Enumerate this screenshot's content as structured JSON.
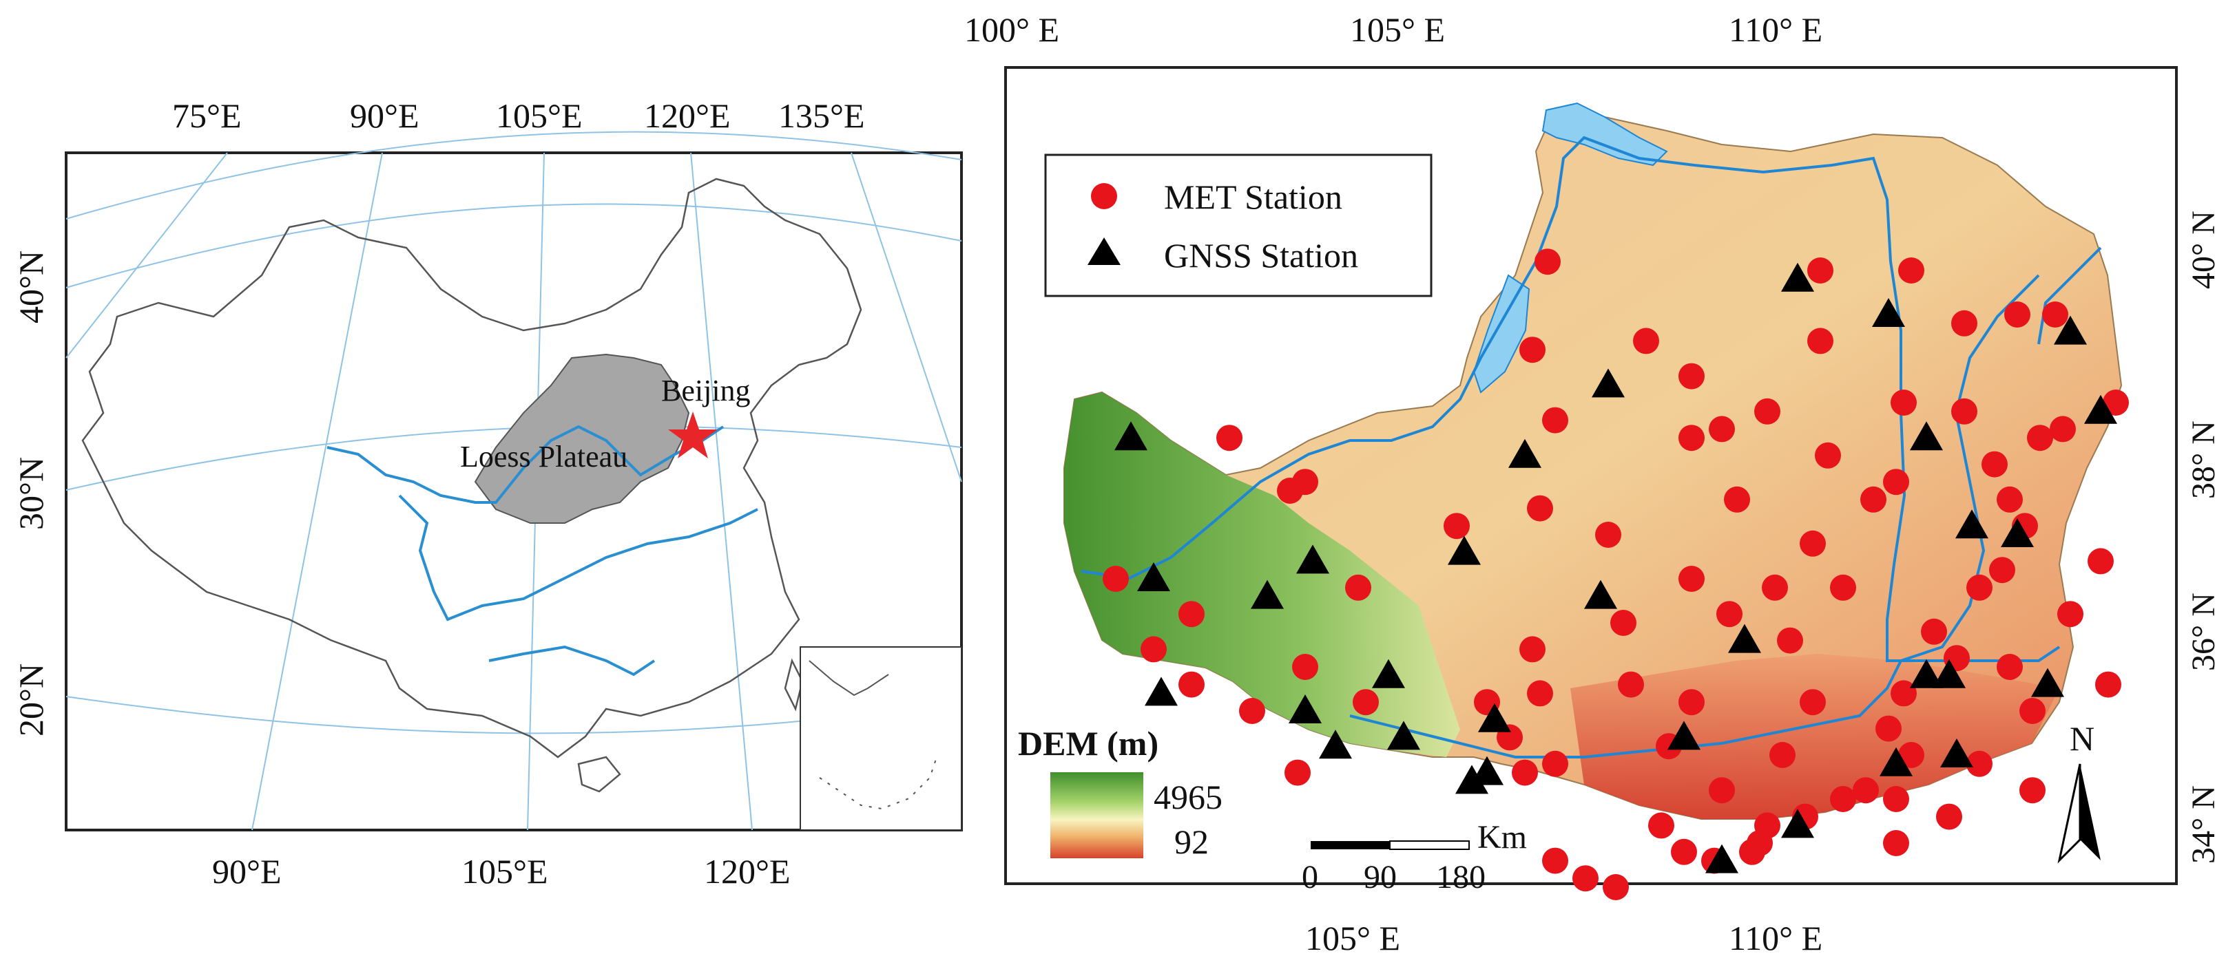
{
  "left_map": {
    "top_ticks": [
      "75°E",
      "90°E",
      "105°E",
      "120°E",
      "135°E"
    ],
    "bottom_ticks": [
      "90°E",
      "105°E",
      "120°E"
    ],
    "left_ticks": [
      "40°N",
      "30°N",
      "20°N"
    ],
    "labels": {
      "beijing": "Beijing",
      "loess_plateau": "Loess Plateau"
    },
    "colors": {
      "plateau": "#a6a6a6",
      "star": "#e8262a",
      "river": "#2a8fd0",
      "graticule": "#8fc3e6"
    }
  },
  "right_map": {
    "top_ticks": [
      "100° E",
      "105° E",
      "110° E"
    ],
    "bottom_ticks": [
      "105° E",
      "110° E"
    ],
    "right_ticks": [
      "40° N",
      "38° N",
      "36° N",
      "34° N"
    ],
    "legend": {
      "met_label": "MET Station",
      "gnss_label": "GNSS Station"
    },
    "dem": {
      "title": "DEM (m)",
      "max": "4965",
      "min": "92"
    },
    "scale": {
      "unit": "Km",
      "ticks": [
        "0",
        "90",
        "180"
      ]
    },
    "north_label": "N",
    "colors": {
      "met": "#e8141c",
      "gnss": "#000000",
      "water": "#8fd0f2",
      "river": "#1f86d4"
    }
  },
  "stations": {
    "met": [
      [
        103.3,
        38.0
      ],
      [
        103.5,
        38.1
      ],
      [
        102.5,
        38.6
      ],
      [
        101.0,
        37.0
      ],
      [
        101.5,
        36.2
      ],
      [
        102.0,
        36.6
      ],
      [
        102.0,
        35.8
      ],
      [
        102.8,
        35.5
      ],
      [
        103.4,
        34.8
      ],
      [
        103.5,
        36.0
      ],
      [
        104.2,
        36.9
      ],
      [
        104.3,
        35.6
      ],
      [
        105.5,
        37.6
      ],
      [
        106.6,
        37.8
      ],
      [
        106.5,
        36.2
      ],
      [
        106.6,
        35.7
      ],
      [
        106.4,
        34.8
      ],
      [
        106.8,
        34.9
      ],
      [
        105.9,
        35.6
      ],
      [
        106.2,
        35.2
      ],
      [
        106.8,
        33.8
      ],
      [
        107.2,
        33.6
      ],
      [
        107.6,
        33.5
      ],
      [
        107.7,
        36.5
      ],
      [
        107.8,
        35.8
      ],
      [
        107.5,
        37.5
      ],
      [
        106.7,
        40.6
      ],
      [
        106.5,
        39.6
      ],
      [
        106.8,
        38.8
      ],
      [
        108.0,
        39.7
      ],
      [
        108.6,
        39.3
      ],
      [
        108.6,
        38.6
      ],
      [
        109.0,
        38.7
      ],
      [
        109.6,
        38.9
      ],
      [
        109.2,
        37.9
      ],
      [
        109.7,
        36.9
      ],
      [
        109.1,
        36.6
      ],
      [
        108.6,
        37.0
      ],
      [
        110.3,
        40.5
      ],
      [
        111.5,
        40.5
      ],
      [
        110.3,
        39.7
      ],
      [
        110.4,
        38.4
      ],
      [
        110.2,
        37.4
      ],
      [
        111.0,
        37.9
      ],
      [
        111.3,
        38.1
      ],
      [
        110.6,
        36.9
      ],
      [
        109.9,
        36.3
      ],
      [
        110.2,
        35.6
      ],
      [
        109.8,
        35.0
      ],
      [
        110.1,
        34.3
      ],
      [
        109.5,
        34.0
      ],
      [
        109.4,
        33.9
      ],
      [
        108.2,
        34.2
      ],
      [
        108.5,
        33.9
      ],
      [
        108.9,
        33.8
      ],
      [
        109.0,
        34.6
      ],
      [
        108.3,
        35.1
      ],
      [
        108.6,
        35.6
      ],
      [
        109.6,
        34.2
      ],
      [
        110.6,
        34.5
      ],
      [
        110.9,
        34.6
      ],
      [
        111.2,
        35.3
      ],
      [
        111.8,
        36.4
      ],
      [
        111.4,
        35.7
      ],
      [
        111.5,
        35.0
      ],
      [
        112.1,
        36.1
      ],
      [
        112.4,
        36.9
      ],
      [
        112.7,
        37.1
      ],
      [
        112.8,
        36.0
      ],
      [
        113.1,
        35.5
      ],
      [
        112.4,
        34.9
      ],
      [
        111.3,
        34.5
      ],
      [
        112.0,
        34.3
      ],
      [
        111.3,
        34.0
      ],
      [
        112.2,
        39.9
      ],
      [
        112.2,
        38.9
      ],
      [
        112.6,
        38.3
      ],
      [
        112.8,
        37.9
      ],
      [
        113.0,
        37.6
      ],
      [
        113.2,
        38.6
      ],
      [
        113.5,
        38.7
      ],
      [
        112.9,
        40.0
      ],
      [
        113.4,
        40.0
      ],
      [
        114.2,
        39.0
      ],
      [
        114.0,
        37.2
      ],
      [
        113.6,
        36.6
      ],
      [
        113.1,
        34.6
      ],
      [
        114.1,
        35.8
      ],
      [
        111.4,
        39.0
      ]
    ],
    "gnss": [
      [
        101.2,
        38.6
      ],
      [
        101.5,
        37.0
      ],
      [
        101.6,
        35.7
      ],
      [
        103.0,
        36.8
      ],
      [
        103.5,
        35.5
      ],
      [
        104.6,
        35.9
      ],
      [
        103.9,
        35.1
      ],
      [
        104.8,
        35.2
      ],
      [
        105.7,
        34.7
      ],
      [
        106.0,
        35.4
      ],
      [
        105.9,
        34.8
      ],
      [
        107.4,
        36.8
      ],
      [
        107.5,
        39.2
      ],
      [
        106.4,
        38.4
      ],
      [
        105.6,
        37.3
      ],
      [
        108.5,
        35.2
      ],
      [
        109.3,
        36.3
      ],
      [
        110.0,
        40.4
      ],
      [
        111.2,
        40.0
      ],
      [
        111.7,
        38.6
      ],
      [
        112.3,
        37.6
      ],
      [
        112.9,
        37.5
      ],
      [
        111.7,
        35.9
      ],
      [
        112.0,
        35.9
      ],
      [
        111.3,
        34.9
      ],
      [
        112.1,
        35.0
      ],
      [
        113.3,
        35.8
      ],
      [
        113.6,
        39.8
      ],
      [
        114.0,
        38.9
      ],
      [
        110.0,
        34.2
      ],
      [
        109.0,
        33.8
      ],
      [
        103.6,
        37.2
      ]
    ]
  }
}
